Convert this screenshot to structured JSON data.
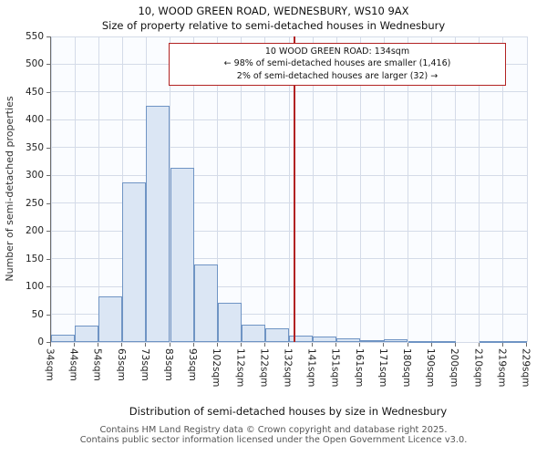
{
  "title": "10, WOOD GREEN ROAD, WEDNESBURY, WS10 9AX",
  "subtitle": "Size of property relative to semi-detached houses in Wednesbury",
  "annotation": {
    "line1": "10 WOOD GREEN ROAD: 134sqm",
    "line2": "← 98% of semi-detached houses are smaller (1,416)",
    "line3": "2% of semi-detached houses are larger (32) →"
  },
  "footer": {
    "line1": "Contains HM Land Registry data © Crown copyright and database right 2025.",
    "line2": "Contains public sector information licensed under the Open Government Licence v3.0."
  },
  "chart_data": {
    "type": "bar",
    "title": "10, WOOD GREEN ROAD, WEDNESBURY, WS10 9AX",
    "subtitle": "Size of property relative to semi-detached houses in Wednesbury",
    "xlabel": "Distribution of semi-detached houses by size in Wednesbury",
    "ylabel": "Number of semi-detached properties",
    "bin_edges_sqm": [
      34,
      44,
      54,
      63,
      73,
      83,
      93,
      102,
      112,
      122,
      132,
      141,
      151,
      161,
      171,
      180,
      190,
      200,
      210,
      219,
      229
    ],
    "x_tick_labels": [
      "34sqm",
      "44sqm",
      "54sqm",
      "63sqm",
      "73sqm",
      "83sqm",
      "93sqm",
      "102sqm",
      "112sqm",
      "122sqm",
      "132sqm",
      "141sqm",
      "151sqm",
      "161sqm",
      "171sqm",
      "180sqm",
      "190sqm",
      "200sqm",
      "210sqm",
      "219sqm",
      "229sqm"
    ],
    "values": [
      13,
      30,
      82,
      287,
      425,
      313,
      140,
      70,
      32,
      25,
      12,
      10,
      7,
      3,
      5,
      2,
      1,
      0,
      1,
      2
    ],
    "yticks": [
      0,
      50,
      100,
      150,
      200,
      250,
      300,
      350,
      400,
      450,
      500,
      550
    ],
    "ylim": [
      0,
      550
    ],
    "grid": true,
    "legend": "none",
    "marker": {
      "value_sqm": 134,
      "label": "10 WOOD GREEN ROAD: 134sqm",
      "color": "#b22222"
    },
    "pct_smaller": 98,
    "count_smaller": 1416,
    "pct_larger": 2,
    "count_larger": 32,
    "bar_fill": "#dbe6f4",
    "bar_border": "#6f94c4",
    "grid_color": "#d4dbe8"
  }
}
